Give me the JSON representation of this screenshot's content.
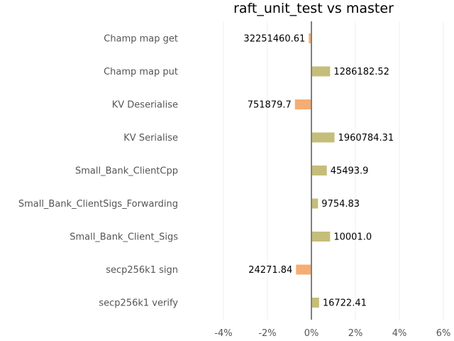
{
  "chart_data": {
    "type": "bar",
    "orientation": "horizontal",
    "title": "raft_unit_test vs master",
    "xlabel": "",
    "ylabel": "",
    "categories": [
      "Champ map get",
      "Champ map put",
      "KV Deserialise",
      "KV Serialise",
      "Small_Bank_ClientCpp",
      "Small_Bank_ClientSigs_Forwarding",
      "Small_Bank_Client_Sigs",
      "secp256k1 sign",
      "secp256k1 verify"
    ],
    "values": [
      -0.12,
      0.85,
      -0.75,
      1.05,
      0.7,
      0.3,
      0.85,
      -0.7,
      0.35
    ],
    "data_labels": [
      "32251460.61",
      "1286182.52",
      "751879.7",
      "1960784.31",
      "45493.9",
      "9754.83",
      "10001.0",
      "24271.84",
      "16722.41"
    ],
    "xlim": [
      -4.5,
      6.1
    ],
    "xticks": [
      -4,
      -2,
      0,
      2,
      4,
      6
    ],
    "xtick_labels": [
      "-4%",
      "-2%",
      "0%",
      "2%",
      "4%",
      "6%"
    ],
    "grid": true,
    "colors": {
      "positive": "#c4be7a",
      "negative": "#f4ad74",
      "zero_line": "#808080",
      "grid": "#efefef"
    }
  }
}
